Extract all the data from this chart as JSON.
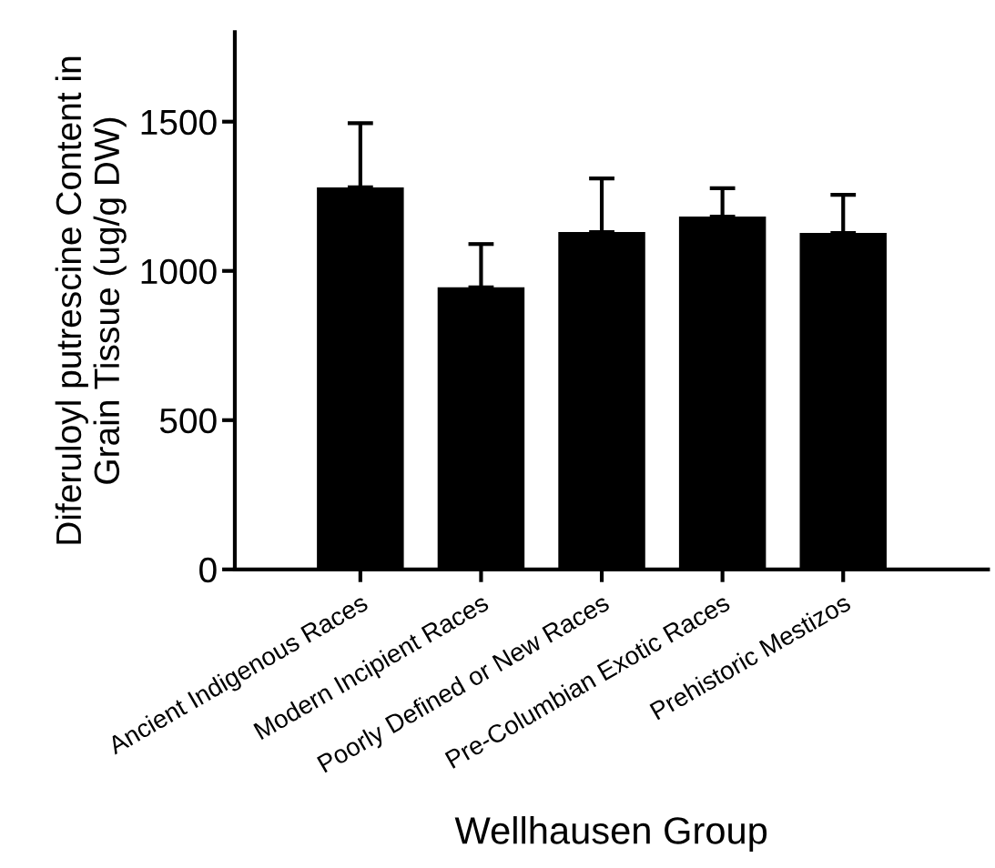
{
  "chart_data": {
    "type": "bar",
    "xlabel": "Wellhausen Group",
    "ylabel": "Diferuloyl putrescine Content in\nGrain Tissue (ug/g DW)",
    "categories": [
      "Ancient Indigenous Races",
      "Modern Incipient Races",
      "Poorly Defined or New Races",
      "Pre-Columbian Exotic Races",
      "Prehistoric Mestizos"
    ],
    "values": [
      1280,
      945,
      1130,
      1182,
      1127
    ],
    "errors": [
      [
        1280,
        1495
      ],
      [
        945,
        1090
      ],
      [
        1130,
        1310
      ],
      [
        1182,
        1277
      ],
      [
        1127,
        1255
      ]
    ],
    "color": "#000000",
    "ylim": [
      0,
      1800
    ],
    "yticks": [
      0,
      500,
      1000,
      1500
    ],
    "grid": false
  }
}
